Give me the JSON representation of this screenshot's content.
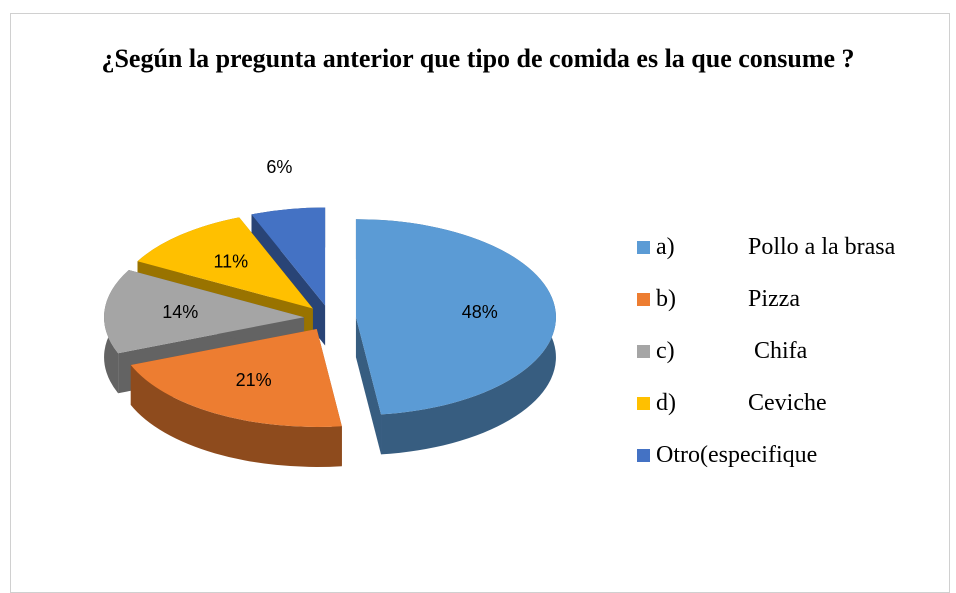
{
  "chart_data": {
    "type": "pie",
    "title": "¿Según la pregunta anterior que tipo de comida es la que consume ?",
    "categories": [
      "a)\tPollo a la brasa",
      "b)\tPizza",
      "c)\t Chifa",
      "d)\tCeviche",
      "Otro(especifique"
    ],
    "values": [
      48,
      21,
      14,
      11,
      6
    ],
    "value_labels": [
      "48%",
      "21%",
      "14%",
      "11%",
      "6%"
    ],
    "colors": [
      "#5b9bd5",
      "#ed7d31",
      "#a5a5a5",
      "#ffc000",
      "#4472c4"
    ],
    "legend": "right"
  }
}
